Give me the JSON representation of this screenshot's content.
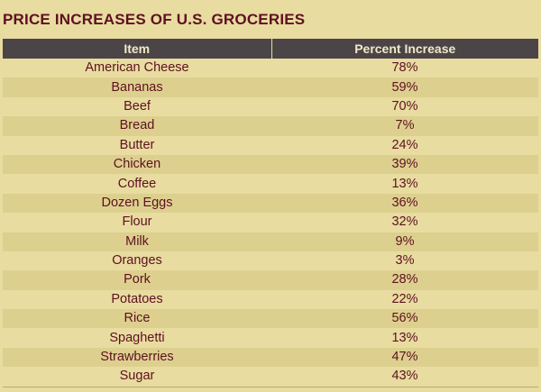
{
  "title": "PRICE INCREASES OF U.S. GROCERIES",
  "colors": {
    "background": "#e8dca0",
    "row_alt": "#ddd08f",
    "header_bg": "#4b4548",
    "header_text": "#f0e9c8",
    "text": "#5e1020"
  },
  "chart_data": {
    "type": "table",
    "title": "PRICE INCREASES OF U.S. GROCERIES",
    "columns": [
      "Item",
      "Percent Increase"
    ],
    "rows": [
      [
        "American Cheese",
        "78%"
      ],
      [
        "Bananas",
        "59%"
      ],
      [
        "Beef",
        "70%"
      ],
      [
        "Bread",
        "7%"
      ],
      [
        "Butter",
        "24%"
      ],
      [
        "Chicken",
        "39%"
      ],
      [
        "Coffee",
        "13%"
      ],
      [
        "Dozen Eggs",
        "36%"
      ],
      [
        "Flour",
        "32%"
      ],
      [
        "Milk",
        "9%"
      ],
      [
        "Oranges",
        "3%"
      ],
      [
        "Pork",
        "28%"
      ],
      [
        "Potatoes",
        "22%"
      ],
      [
        "Rice",
        "56%"
      ],
      [
        "Spaghetti",
        "13%"
      ],
      [
        "Strawberries",
        "47%"
      ],
      [
        "Sugar",
        "43%"
      ]
    ]
  }
}
